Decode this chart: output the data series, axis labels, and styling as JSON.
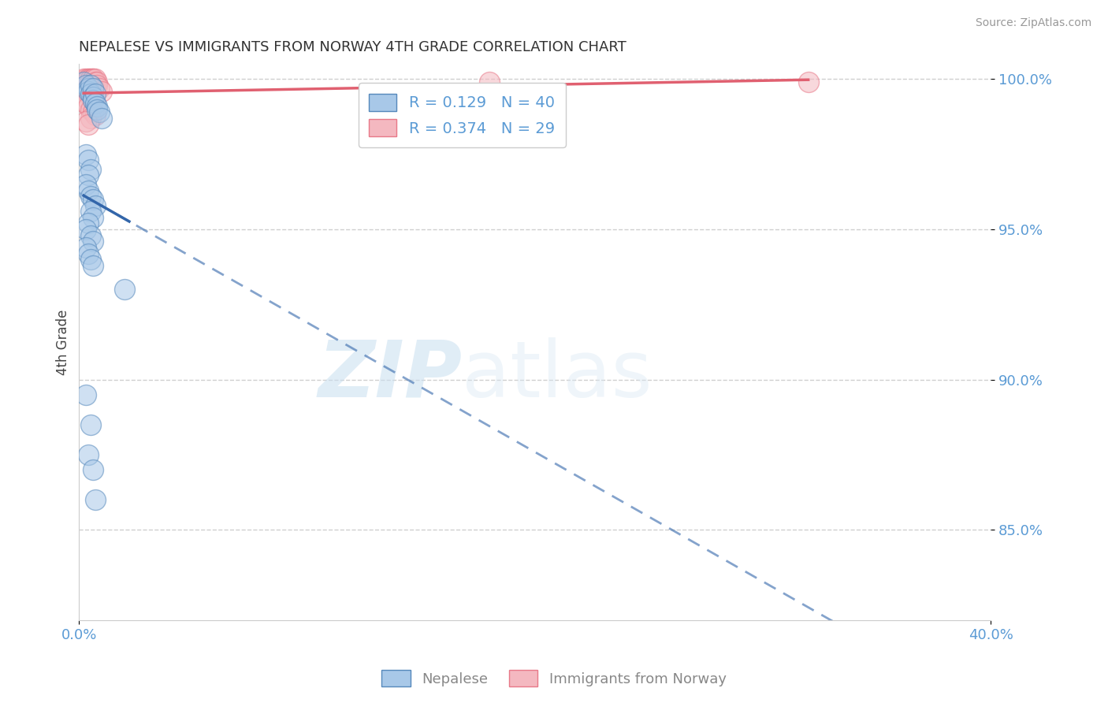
{
  "title": "NEPALESE VS IMMIGRANTS FROM NORWAY 4TH GRADE CORRELATION CHART",
  "source_text": "Source: ZipAtlas.com",
  "ylabel": "4th Grade",
  "xlim": [
    0.0,
    0.4
  ],
  "ylim": [
    0.82,
    1.005
  ],
  "xticks": [
    0.0,
    0.4
  ],
  "xticklabels": [
    "0.0%",
    "40.0%"
  ],
  "yticks": [
    0.85,
    0.9,
    0.95,
    1.0
  ],
  "yticklabels": [
    "85.0%",
    "90.0%",
    "95.0%",
    "100.0%"
  ],
  "legend_r_blue": "R = 0.129",
  "legend_n_blue": "N = 40",
  "legend_r_pink": "R = 0.374",
  "legend_n_pink": "N = 29",
  "blue_color": "#a8c8e8",
  "pink_color": "#f4b8c0",
  "blue_edge_color": "#5588bb",
  "pink_edge_color": "#e87888",
  "blue_line_color": "#3366aa",
  "pink_line_color": "#e06070",
  "blue_scatter_x": [
    0.002,
    0.003,
    0.004,
    0.004,
    0.005,
    0.005,
    0.006,
    0.006,
    0.006,
    0.007,
    0.007,
    0.008,
    0.008,
    0.009,
    0.01,
    0.003,
    0.004,
    0.005,
    0.004,
    0.003,
    0.004,
    0.005,
    0.006,
    0.007,
    0.005,
    0.006,
    0.004,
    0.003,
    0.005,
    0.006,
    0.003,
    0.004,
    0.005,
    0.006,
    0.02,
    0.003,
    0.005,
    0.004,
    0.006,
    0.007
  ],
  "blue_scatter_y": [
    0.999,
    0.998,
    0.997,
    0.996,
    0.998,
    0.995,
    0.997,
    0.994,
    0.993,
    0.995,
    0.992,
    0.991,
    0.99,
    0.989,
    0.987,
    0.975,
    0.973,
    0.97,
    0.968,
    0.965,
    0.963,
    0.961,
    0.96,
    0.958,
    0.956,
    0.954,
    0.952,
    0.95,
    0.948,
    0.946,
    0.944,
    0.942,
    0.94,
    0.938,
    0.93,
    0.895,
    0.885,
    0.875,
    0.87,
    0.86
  ],
  "pink_scatter_x": [
    0.002,
    0.003,
    0.004,
    0.004,
    0.005,
    0.005,
    0.006,
    0.006,
    0.006,
    0.007,
    0.007,
    0.008,
    0.008,
    0.009,
    0.01,
    0.003,
    0.004,
    0.005,
    0.004,
    0.003,
    0.004,
    0.005,
    0.006,
    0.007,
    0.005,
    0.003,
    0.004,
    0.18,
    0.32
  ],
  "pink_scatter_y": [
    1.0,
    1.0,
    1.0,
    1.0,
    1.0,
    1.0,
    1.0,
    1.0,
    1.0,
    1.0,
    0.999,
    0.999,
    0.998,
    0.997,
    0.996,
    0.996,
    0.995,
    0.994,
    0.993,
    0.992,
    0.991,
    0.99,
    0.989,
    0.988,
    0.987,
    0.986,
    0.985,
    0.999,
    0.999
  ],
  "background_color": "#ffffff",
  "grid_color": "#bbbbbb",
  "tick_color": "#5b9bd5",
  "watermark_zip": "ZIP",
  "watermark_atlas": "atlas"
}
